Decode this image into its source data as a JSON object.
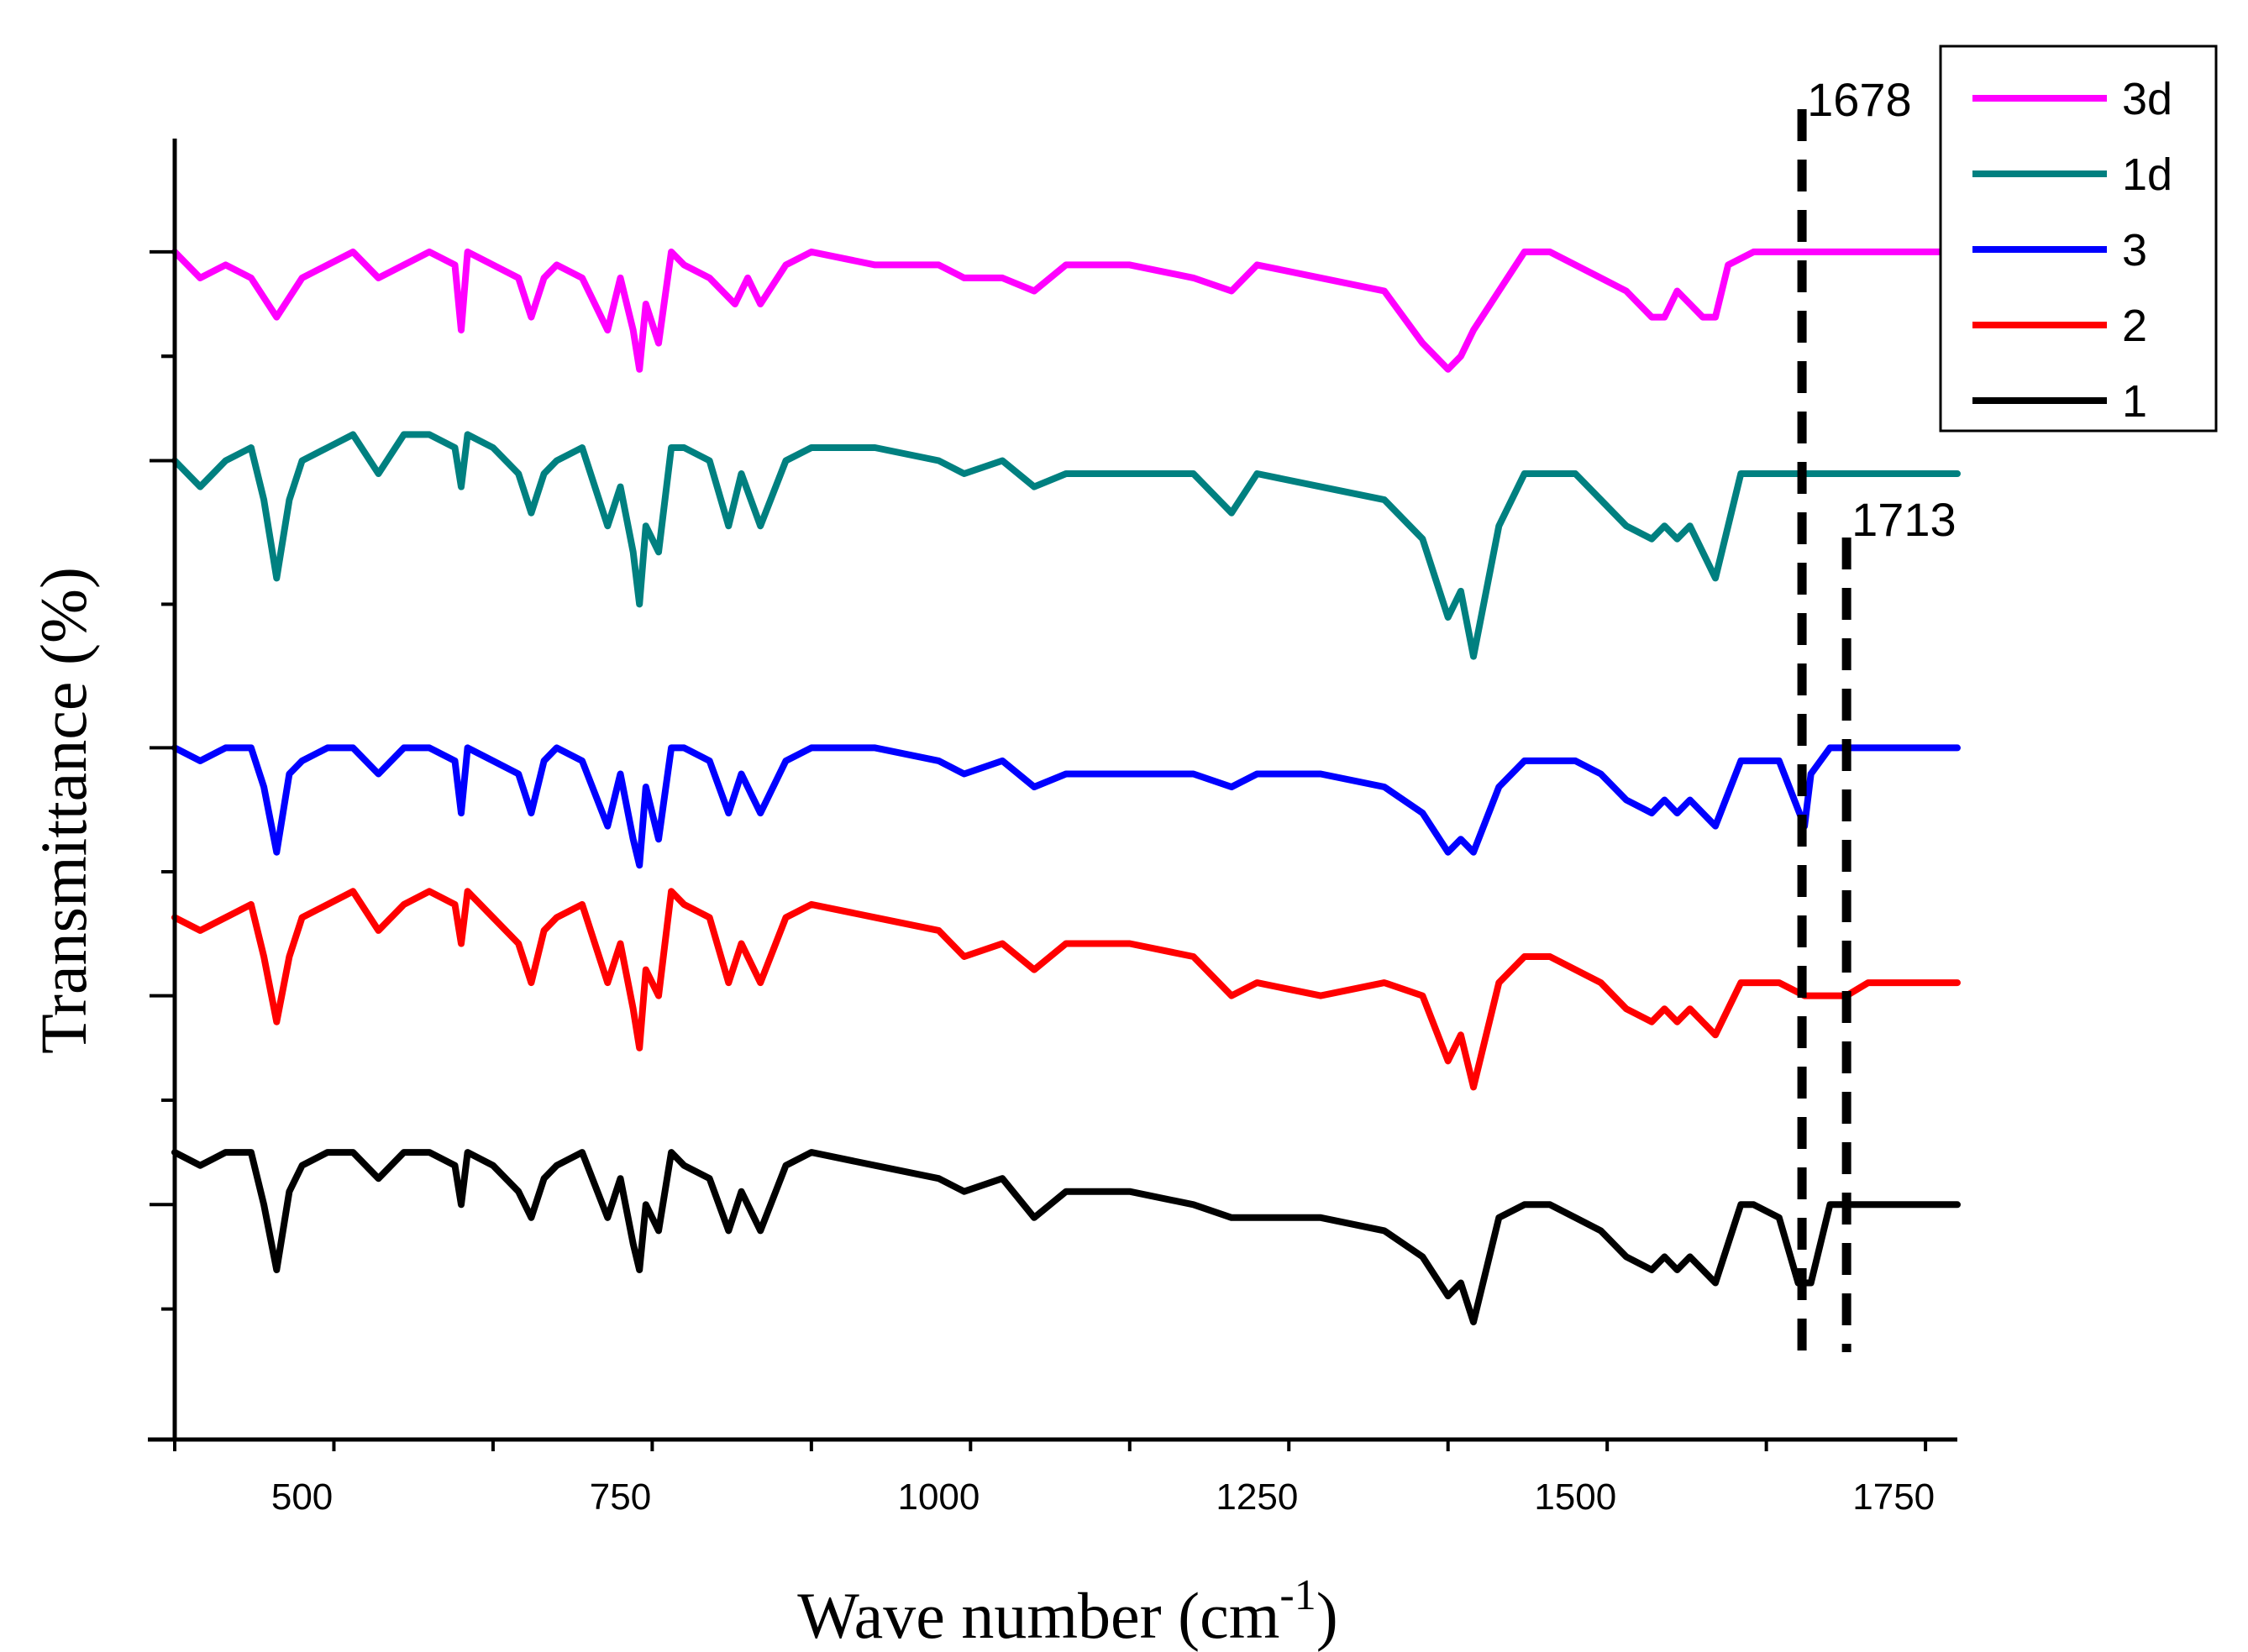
{
  "chart_data": {
    "type": "line",
    "title": "",
    "xlabel": "Wave number (cm",
    "xlabel_sup": "-1",
    "xlabel_close": ")",
    "ylabel": "Transmittance (%)",
    "xlim": [
      400,
      1800
    ],
    "ylim": [
      0,
      100
    ],
    "xticks": [
      500,
      750,
      1000,
      1250,
      1500,
      1750
    ],
    "grid": false,
    "legend_position": "top-right",
    "annotations": [
      {
        "label": "1678",
        "x": 1678
      },
      {
        "label": "1713",
        "x": 1713
      }
    ],
    "series": [
      {
        "name": "3d",
        "color": "#ff00ff",
        "baseline": 91,
        "x": [
          400,
          420,
          440,
          460,
          480,
          500,
          520,
          540,
          560,
          580,
          600,
          620,
          625,
          630,
          650,
          670,
          680,
          690,
          700,
          720,
          740,
          750,
          760,
          765,
          770,
          780,
          790,
          800,
          820,
          840,
          850,
          860,
          880,
          900,
          950,
          1000,
          1020,
          1050,
          1075,
          1100,
          1150,
          1200,
          1230,
          1250,
          1300,
          1350,
          1380,
          1400,
          1410,
          1420,
          1440,
          1460,
          1480,
          1500,
          1520,
          1540,
          1560,
          1570,
          1580,
          1590,
          1600,
          1610,
          1620,
          1640,
          1660,
          1680,
          1700,
          1750,
          1800
        ],
        "y": [
          91,
          89,
          90,
          89,
          86,
          89,
          90,
          91,
          89,
          90,
          91,
          90,
          85,
          91,
          90,
          89,
          86,
          89,
          90,
          89,
          85,
          89,
          85,
          82,
          87,
          84,
          91,
          90,
          89,
          87,
          89,
          87,
          90,
          91,
          90,
          90,
          89,
          89,
          88,
          90,
          90,
          89,
          88,
          90,
          89,
          88,
          84,
          82,
          83,
          85,
          88,
          91,
          91,
          90,
          89,
          88,
          86,
          86,
          88,
          87,
          86,
          86,
          90,
          91,
          91,
          91,
          91,
          91,
          91
        ]
      },
      {
        "name": "1d",
        "color": "#008080",
        "baseline": 75,
        "x": [
          400,
          420,
          440,
          460,
          470,
          480,
          490,
          500,
          520,
          540,
          560,
          580,
          600,
          620,
          625,
          630,
          650,
          670,
          680,
          690,
          700,
          720,
          740,
          750,
          760,
          765,
          770,
          780,
          790,
          800,
          820,
          835,
          845,
          860,
          880,
          900,
          950,
          1000,
          1020,
          1050,
          1075,
          1100,
          1150,
          1200,
          1230,
          1250,
          1300,
          1350,
          1380,
          1400,
          1410,
          1420,
          1440,
          1460,
          1480,
          1500,
          1520,
          1540,
          1560,
          1570,
          1580,
          1590,
          1610,
          1630,
          1660,
          1680,
          1700,
          1750,
          1800
        ],
        "y": [
          75,
          73,
          75,
          76,
          72,
          66,
          72,
          75,
          76,
          77,
          74,
          77,
          77,
          76,
          73,
          77,
          76,
          74,
          71,
          74,
          75,
          76,
          70,
          73,
          68,
          64,
          70,
          68,
          76,
          76,
          75,
          70,
          74,
          70,
          75,
          76,
          76,
          75,
          74,
          75,
          73,
          74,
          74,
          74,
          71,
          74,
          73,
          72,
          69,
          63,
          65,
          60,
          70,
          74,
          74,
          74,
          72,
          70,
          69,
          70,
          69,
          70,
          66,
          74,
          74,
          74,
          74,
          74,
          74
        ]
      },
      {
        "name": "3",
        "color": "#0000ff",
        "baseline": 53,
        "x": [
          400,
          420,
          440,
          460,
          470,
          480,
          490,
          500,
          520,
          540,
          560,
          580,
          600,
          620,
          625,
          630,
          650,
          670,
          680,
          690,
          700,
          720,
          740,
          750,
          760,
          765,
          770,
          780,
          790,
          800,
          820,
          835,
          845,
          860,
          880,
          900,
          950,
          1000,
          1020,
          1050,
          1075,
          1100,
          1150,
          1200,
          1230,
          1250,
          1300,
          1350,
          1380,
          1400,
          1410,
          1420,
          1440,
          1460,
          1480,
          1500,
          1520,
          1540,
          1560,
          1570,
          1580,
          1590,
          1610,
          1630,
          1660,
          1680,
          1685,
          1700,
          1750,
          1800
        ],
        "y": [
          53,
          52,
          53,
          53,
          50,
          45,
          51,
          52,
          53,
          53,
          51,
          53,
          53,
          52,
          48,
          53,
          52,
          51,
          48,
          52,
          53,
          52,
          47,
          51,
          46,
          44,
          50,
          46,
          53,
          53,
          52,
          48,
          51,
          48,
          52,
          53,
          53,
          52,
          51,
          52,
          50,
          51,
          51,
          51,
          50,
          51,
          51,
          50,
          48,
          45,
          46,
          45,
          50,
          52,
          52,
          52,
          51,
          49,
          48,
          49,
          48,
          49,
          47,
          52,
          52,
          47,
          51,
          53,
          53,
          53
        ]
      },
      {
        "name": "2",
        "color": "#ff0000",
        "baseline": 34,
        "x": [
          400,
          420,
          440,
          460,
          470,
          480,
          490,
          500,
          520,
          540,
          560,
          580,
          600,
          620,
          625,
          630,
          650,
          670,
          680,
          690,
          700,
          720,
          740,
          750,
          760,
          765,
          770,
          780,
          790,
          800,
          820,
          835,
          845,
          860,
          880,
          900,
          950,
          1000,
          1020,
          1050,
          1075,
          1100,
          1150,
          1200,
          1230,
          1250,
          1300,
          1350,
          1380,
          1400,
          1410,
          1420,
          1440,
          1460,
          1480,
          1500,
          1520,
          1540,
          1560,
          1570,
          1580,
          1590,
          1610,
          1630,
          1660,
          1680,
          1700,
          1713,
          1730,
          1750,
          1800
        ],
        "y": [
          40,
          39,
          40,
          41,
          37,
          32,
          37,
          40,
          41,
          42,
          39,
          41,
          42,
          41,
          38,
          42,
          40,
          38,
          35,
          39,
          40,
          41,
          35,
          38,
          33,
          30,
          36,
          34,
          42,
          41,
          40,
          35,
          38,
          35,
          40,
          41,
          40,
          39,
          37,
          38,
          36,
          38,
          38,
          37,
          34,
          35,
          34,
          35,
          34,
          29,
          31,
          27,
          35,
          37,
          37,
          36,
          35,
          33,
          32,
          33,
          32,
          33,
          31,
          35,
          35,
          34,
          34,
          34,
          35,
          35,
          35
        ]
      },
      {
        "name": "1",
        "color": "#000000",
        "baseline": 18,
        "x": [
          400,
          420,
          440,
          460,
          470,
          480,
          490,
          500,
          520,
          540,
          560,
          580,
          600,
          620,
          625,
          630,
          650,
          670,
          680,
          690,
          700,
          720,
          740,
          750,
          760,
          765,
          770,
          780,
          790,
          800,
          820,
          835,
          845,
          860,
          880,
          900,
          950,
          1000,
          1020,
          1050,
          1075,
          1100,
          1150,
          1200,
          1230,
          1250,
          1300,
          1350,
          1380,
          1400,
          1410,
          1420,
          1440,
          1460,
          1480,
          1500,
          1520,
          1540,
          1560,
          1570,
          1580,
          1590,
          1610,
          1630,
          1640,
          1660,
          1675,
          1680,
          1685,
          1700,
          1750,
          1800
        ],
        "y": [
          22,
          21,
          22,
          22,
          18,
          13,
          19,
          21,
          22,
          22,
          20,
          22,
          22,
          21,
          18,
          22,
          21,
          19,
          17,
          20,
          21,
          22,
          17,
          20,
          15,
          13,
          18,
          16,
          22,
          21,
          20,
          16,
          19,
          16,
          21,
          22,
          21,
          20,
          19,
          20,
          17,
          19,
          19,
          18,
          17,
          17,
          17,
          16,
          14,
          11,
          12,
          9,
          17,
          18,
          18,
          17,
          16,
          14,
          13,
          14,
          13,
          14,
          12,
          18,
          18,
          17,
          12,
          12,
          12,
          18,
          18,
          18
        ]
      }
    ]
  }
}
